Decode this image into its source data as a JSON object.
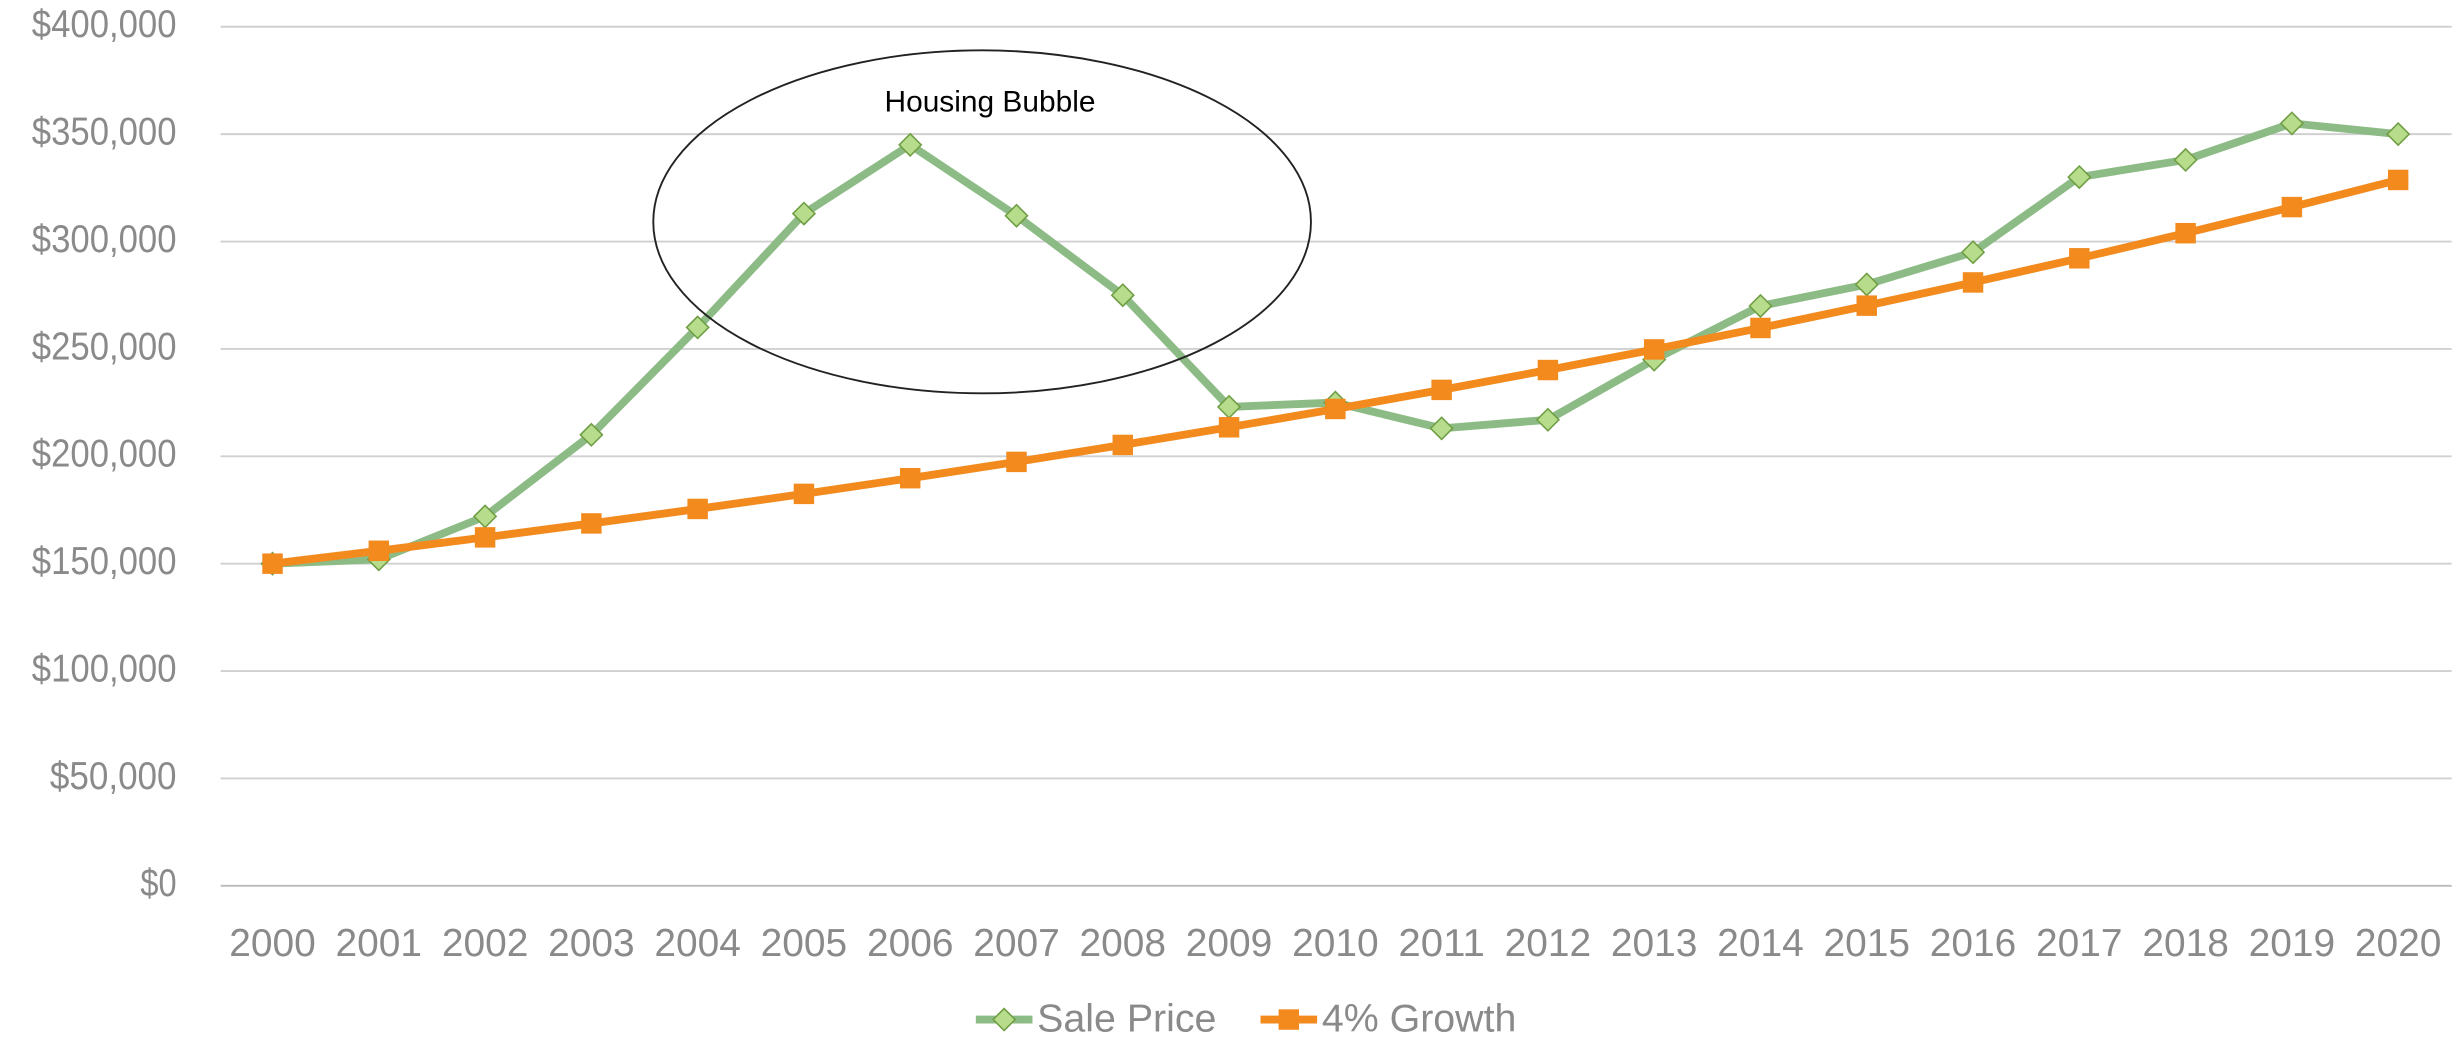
{
  "chart_data": {
    "type": "line",
    "annotation": "Housing Bubble",
    "categories": [
      "2000",
      "2001",
      "2002",
      "2003",
      "2004",
      "2005",
      "2006",
      "2007",
      "2008",
      "2009",
      "2010",
      "2011",
      "2012",
      "2013",
      "2014",
      "2015",
      "2016",
      "2017",
      "2018",
      "2019",
      "2020"
    ],
    "series": [
      {
        "name": "Sale Price",
        "color": "#8dbb85",
        "marker": "diamond",
        "values": [
          150000,
          152000,
          172000,
          210000,
          260000,
          313000,
          345000,
          312000,
          275000,
          223000,
          225000,
          213000,
          217000,
          245000,
          270000,
          280000,
          295000,
          330000,
          338000,
          355000,
          350000
        ]
      },
      {
        "name": "4% Growth",
        "color": "#f28a1e",
        "marker": "square",
        "values": [
          150000,
          156000,
          162240,
          168730,
          175479,
          182498,
          189798,
          197390,
          205285,
          213497,
          222037,
          230918,
          240155,
          249761,
          259751,
          270141,
          280947,
          292185,
          303872,
          316027,
          328668
        ]
      }
    ],
    "ylim": [
      0,
      400000
    ],
    "yticks": [
      {
        "value": 0,
        "label": "$0"
      },
      {
        "value": 50000,
        "label": "$50,000"
      },
      {
        "value": 100000,
        "label": "$100,000"
      },
      {
        "value": 150000,
        "label": "$150,000"
      },
      {
        "value": 200000,
        "label": "$200,000"
      },
      {
        "value": 250000,
        "label": "$250,000"
      },
      {
        "value": 300000,
        "label": "$300,000"
      },
      {
        "value": 350000,
        "label": "$350,000"
      },
      {
        "value": 400000,
        "label": "$400,000"
      }
    ],
    "grid": true,
    "legend": "bottom"
  }
}
